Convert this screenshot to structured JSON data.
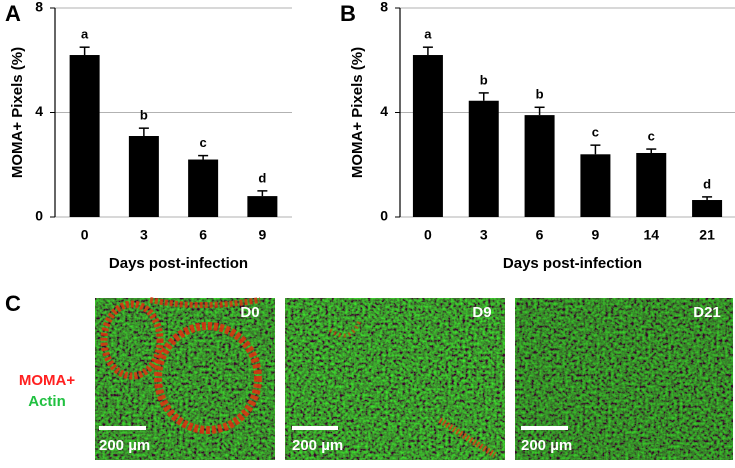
{
  "chart_data": [
    {
      "type": "bar",
      "panel_label": "A",
      "y_label": "MOMA+ Pixels (%)",
      "x_label": "Days post-infection",
      "categories": [
        "0",
        "3",
        "6",
        "9"
      ],
      "values": [
        6.2,
        3.1,
        2.2,
        0.8
      ],
      "errors": [
        0.3,
        0.3,
        0.15,
        0.2
      ],
      "annotations": [
        "a",
        "b",
        "c",
        "d"
      ],
      "color": "#000000",
      "ylim": [
        0,
        8
      ],
      "yticks": [
        0,
        4,
        8
      ],
      "grid": true
    },
    {
      "type": "bar",
      "panel_label": "B",
      "y_label": "MOMA+ Pixels (%)",
      "x_label": "Days post-infection",
      "categories": [
        "0",
        "3",
        "6",
        "9",
        "14",
        "21"
      ],
      "values": [
        6.2,
        4.45,
        3.9,
        2.4,
        2.45,
        0.65
      ],
      "errors": [
        0.3,
        0.3,
        0.3,
        0.35,
        0.15,
        0.12
      ],
      "annotations": [
        "a",
        "b",
        "b",
        "c",
        "c",
        "d"
      ],
      "color": "#000000",
      "ylim": [
        0,
        8
      ],
      "yticks": [
        0,
        4,
        8
      ],
      "grid": true
    }
  ],
  "panel_c": {
    "panel_label": "C",
    "legend": [
      "MOMA+",
      "Actin"
    ],
    "images": [
      {
        "label": "D0",
        "scale_bar": "200 µm"
      },
      {
        "label": "D9",
        "scale_bar": "200 µm"
      },
      {
        "label": "D21",
        "scale_bar": "200 µm"
      }
    ]
  }
}
